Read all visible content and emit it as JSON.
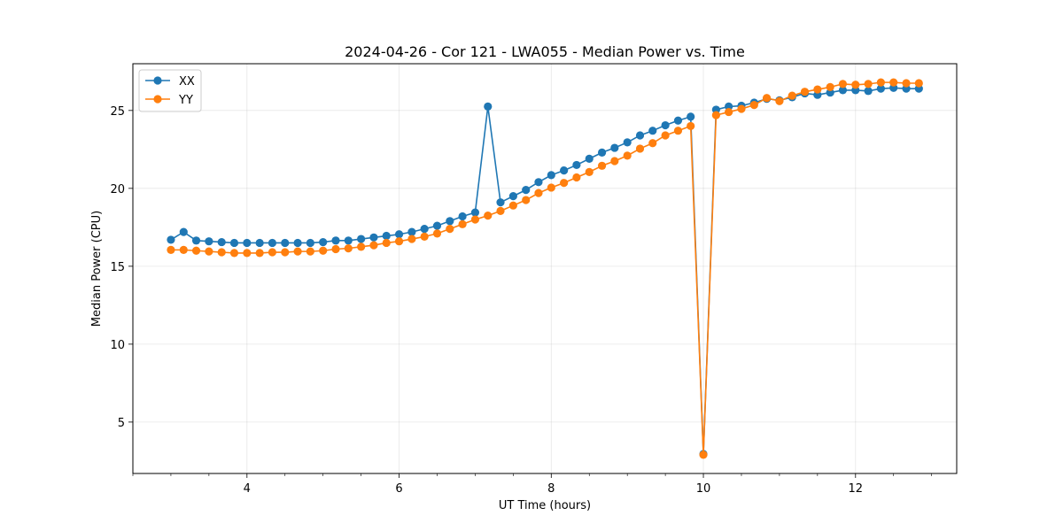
{
  "chart_data": {
    "type": "line",
    "title": "2024-04-26 - Cor 121 - LWA055 - Median Power vs. Time",
    "xlabel": "UT Time (hours)",
    "ylabel": "Median Power (CPU)",
    "xlim": [
      2.5,
      13.33
    ],
    "ylim": [
      1.7,
      28.0
    ],
    "xticks": [
      4,
      6,
      8,
      10,
      12
    ],
    "yticks": [
      5,
      10,
      15,
      20,
      25
    ],
    "grid": true,
    "legend_position": "top-left",
    "x": [
      3.0,
      3.167,
      3.333,
      3.5,
      3.667,
      3.833,
      4.0,
      4.167,
      4.333,
      4.5,
      4.667,
      4.833,
      5.0,
      5.167,
      5.333,
      5.5,
      5.667,
      5.833,
      6.0,
      6.167,
      6.333,
      6.5,
      6.667,
      6.833,
      7.0,
      7.167,
      7.333,
      7.5,
      7.667,
      7.833,
      8.0,
      8.167,
      8.333,
      8.5,
      8.667,
      8.833,
      9.0,
      9.167,
      9.333,
      9.5,
      9.667,
      9.833,
      10.0,
      10.167,
      10.333,
      10.5,
      10.667,
      10.833,
      11.0,
      11.167,
      11.333,
      11.5,
      11.667,
      11.833,
      12.0,
      12.167,
      12.333,
      12.5,
      12.667,
      12.833
    ],
    "series": [
      {
        "name": "XX",
        "color": "#1f77b4",
        "values": [
          16.7,
          17.2,
          16.65,
          16.6,
          16.55,
          16.5,
          16.5,
          16.5,
          16.5,
          16.5,
          16.5,
          16.5,
          16.55,
          16.65,
          16.65,
          16.75,
          16.85,
          16.95,
          17.05,
          17.2,
          17.4,
          17.6,
          17.9,
          18.2,
          18.45,
          25.25,
          19.1,
          19.5,
          19.9,
          20.4,
          20.85,
          21.15,
          21.5,
          21.9,
          22.3,
          22.6,
          22.95,
          23.4,
          23.7,
          24.05,
          24.35,
          24.6,
          2.95,
          25.05,
          25.25,
          25.3,
          25.5,
          25.75,
          25.65,
          25.85,
          26.1,
          26.0,
          26.15,
          26.3,
          26.3,
          26.25,
          26.4,
          26.45,
          26.4,
          26.4
        ]
      },
      {
        "name": "YY",
        "color": "#ff7f0e",
        "values": [
          16.05,
          16.05,
          16.0,
          15.95,
          15.9,
          15.85,
          15.85,
          15.85,
          15.9,
          15.9,
          15.95,
          15.95,
          16.0,
          16.1,
          16.15,
          16.25,
          16.35,
          16.5,
          16.6,
          16.75,
          16.9,
          17.1,
          17.4,
          17.7,
          18.0,
          18.25,
          18.55,
          18.9,
          19.25,
          19.7,
          20.05,
          20.35,
          20.7,
          21.05,
          21.45,
          21.75,
          22.1,
          22.55,
          22.9,
          23.4,
          23.7,
          24.0,
          2.9,
          24.7,
          24.9,
          25.1,
          25.35,
          25.8,
          25.6,
          25.95,
          26.2,
          26.35,
          26.5,
          26.7,
          26.65,
          26.7,
          26.8,
          26.8,
          26.75,
          26.75
        ]
      }
    ]
  }
}
